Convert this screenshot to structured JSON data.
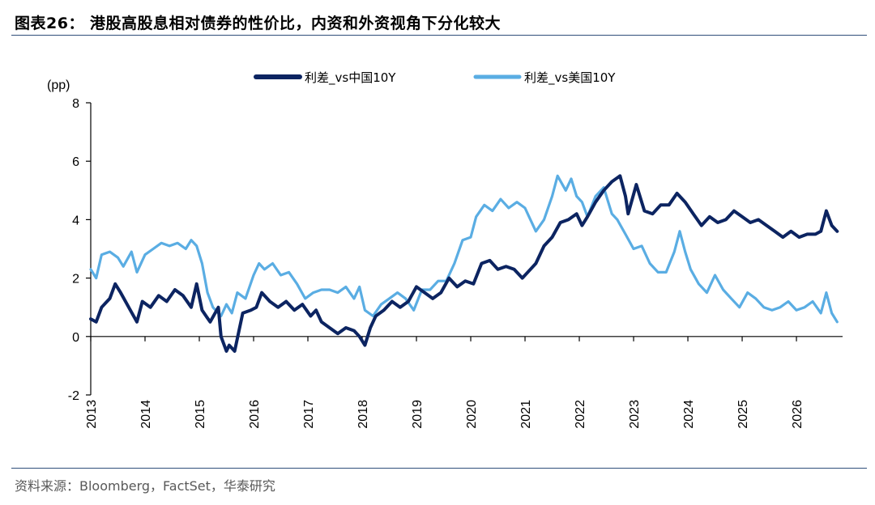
{
  "title": "图表26： 港股高股息相对债券的性价比，内资和外资视角下分化较大",
  "source": "资料来源：Bloomberg，FactSet，华泰研究",
  "chart_data": {
    "type": "line",
    "ylabel": "(pp)",
    "ylim": [
      -2,
      8
    ],
    "yticks": [
      "-2",
      "0",
      "2",
      "4",
      "6",
      "8"
    ],
    "xlim": [
      2013,
      2026.85
    ],
    "xticks": [
      "2013",
      "2014",
      "2015",
      "2016",
      "2017",
      "2018",
      "2019",
      "2020",
      "2021",
      "2022",
      "2023",
      "2024",
      "2025",
      "2026"
    ],
    "grid": false,
    "legend_position": "top-center",
    "series": [
      {
        "name": "利差_vs中国10Y",
        "color": "#0c2461",
        "x": [
          2013.0,
          2013.1,
          2013.2,
          2013.35,
          2013.45,
          2013.55,
          2013.7,
          2013.85,
          2013.95,
          2014.1,
          2014.25,
          2014.4,
          2014.55,
          2014.7,
          2014.85,
          2014.95,
          2015.05,
          2015.2,
          2015.35,
          2015.4,
          2015.5,
          2015.55,
          2015.65,
          2015.8,
          2015.95,
          2016.05,
          2016.15,
          2016.3,
          2016.45,
          2016.6,
          2016.75,
          2016.9,
          2017.05,
          2017.15,
          2017.25,
          2017.4,
          2017.55,
          2017.7,
          2017.85,
          2017.95,
          2018.05,
          2018.15,
          2018.25,
          2018.4,
          2018.55,
          2018.7,
          2018.85,
          2019.0,
          2019.15,
          2019.3,
          2019.45,
          2019.6,
          2019.75,
          2019.9,
          2020.05,
          2020.2,
          2020.35,
          2020.5,
          2020.65,
          2020.8,
          2020.95,
          2021.1,
          2021.2,
          2021.35,
          2021.5,
          2021.65,
          2021.8,
          2021.95,
          2022.05,
          2022.15,
          2022.3,
          2022.45,
          2022.6,
          2022.75,
          2022.85,
          2022.9,
          2023.05,
          2023.2,
          2023.35,
          2023.5,
          2023.65,
          2023.8,
          2023.95,
          2024.1,
          2024.25,
          2024.4,
          2024.55,
          2024.7,
          2024.85,
          2025.0,
          2025.15,
          2025.3,
          2025.45,
          2025.6,
          2025.75,
          2025.9,
          2026.05,
          2026.2,
          2026.35,
          2026.45,
          2026.55,
          2026.65,
          2026.75
        ],
        "y": [
          0.6,
          0.5,
          1.0,
          1.3,
          1.8,
          1.5,
          1.0,
          0.5,
          1.2,
          1.0,
          1.4,
          1.2,
          1.6,
          1.4,
          1.0,
          1.8,
          0.9,
          0.5,
          1.0,
          0.0,
          -0.5,
          -0.3,
          -0.5,
          0.8,
          0.9,
          1.0,
          1.5,
          1.2,
          1.0,
          1.2,
          0.9,
          1.1,
          0.7,
          0.9,
          0.5,
          0.3,
          0.1,
          0.3,
          0.2,
          0.0,
          -0.3,
          0.3,
          0.7,
          0.9,
          1.2,
          1.0,
          1.2,
          1.7,
          1.5,
          1.3,
          1.5,
          2.0,
          1.7,
          1.9,
          1.8,
          2.5,
          2.6,
          2.3,
          2.4,
          2.3,
          2.0,
          2.3,
          2.5,
          3.1,
          3.4,
          3.9,
          4.0,
          4.2,
          3.8,
          4.1,
          4.6,
          5.0,
          5.3,
          5.5,
          4.8,
          4.2,
          5.2,
          4.3,
          4.2,
          4.5,
          4.5,
          4.9,
          4.6,
          4.2,
          3.8,
          4.1,
          3.9,
          4.0,
          4.3,
          4.1,
          3.9,
          4.0,
          3.8,
          3.6,
          3.4,
          3.6,
          3.4,
          3.5,
          3.5,
          3.6,
          4.3,
          3.8,
          3.6
        ]
      },
      {
        "name": "利差_vs美国10Y",
        "color": "#5aade3",
        "x": [
          2013.0,
          2013.1,
          2013.2,
          2013.35,
          2013.5,
          2013.6,
          2013.75,
          2013.85,
          2014.0,
          2014.15,
          2014.3,
          2014.45,
          2014.6,
          2014.75,
          2014.85,
          2014.95,
          2015.05,
          2015.15,
          2015.25,
          2015.4,
          2015.5,
          2015.6,
          2015.7,
          2015.85,
          2016.0,
          2016.1,
          2016.2,
          2016.35,
          2016.5,
          2016.65,
          2016.8,
          2016.95,
          2017.1,
          2017.25,
          2017.4,
          2017.55,
          2017.7,
          2017.85,
          2017.95,
          2018.05,
          2018.2,
          2018.35,
          2018.5,
          2018.65,
          2018.8,
          2018.95,
          2019.1,
          2019.25,
          2019.4,
          2019.55,
          2019.7,
          2019.85,
          2020.0,
          2020.1,
          2020.25,
          2020.4,
          2020.55,
          2020.7,
          2020.85,
          2021.0,
          2021.1,
          2021.2,
          2021.35,
          2021.5,
          2021.6,
          2021.75,
          2021.85,
          2021.95,
          2022.05,
          2022.15,
          2022.3,
          2022.45,
          2022.6,
          2022.7,
          2022.85,
          2023.0,
          2023.15,
          2023.3,
          2023.45,
          2023.6,
          2023.75,
          2023.85,
          2023.95,
          2024.05,
          2024.2,
          2024.35,
          2024.5,
          2024.65,
          2024.8,
          2024.95,
          2025.1,
          2025.25,
          2025.4,
          2025.55,
          2025.7,
          2025.85,
          2026.0,
          2026.15,
          2026.3,
          2026.45,
          2026.55,
          2026.65,
          2026.75
        ],
        "y": [
          2.3,
          2.0,
          2.8,
          2.9,
          2.7,
          2.4,
          2.9,
          2.2,
          2.8,
          3.0,
          3.2,
          3.1,
          3.2,
          3.0,
          3.3,
          3.1,
          2.5,
          1.5,
          1.0,
          0.7,
          1.1,
          0.8,
          1.5,
          1.3,
          2.1,
          2.5,
          2.3,
          2.5,
          2.1,
          2.2,
          1.8,
          1.3,
          1.5,
          1.6,
          1.6,
          1.5,
          1.7,
          1.3,
          1.7,
          0.9,
          0.7,
          1.1,
          1.3,
          1.5,
          1.3,
          0.9,
          1.6,
          1.6,
          1.9,
          1.9,
          2.5,
          3.3,
          3.4,
          4.1,
          4.5,
          4.3,
          4.7,
          4.4,
          4.6,
          4.4,
          4.0,
          3.6,
          4.0,
          4.8,
          5.5,
          5.0,
          5.4,
          4.8,
          4.6,
          4.1,
          4.8,
          5.1,
          4.2,
          4.0,
          3.5,
          3.0,
          3.1,
          2.5,
          2.2,
          2.2,
          2.9,
          3.6,
          2.9,
          2.3,
          1.8,
          1.5,
          2.1,
          1.6,
          1.3,
          1.0,
          1.5,
          1.3,
          1.0,
          0.9,
          1.0,
          1.2,
          0.9,
          1.0,
          1.2,
          0.8,
          1.5,
          0.8,
          0.5
        ]
      }
    ]
  }
}
